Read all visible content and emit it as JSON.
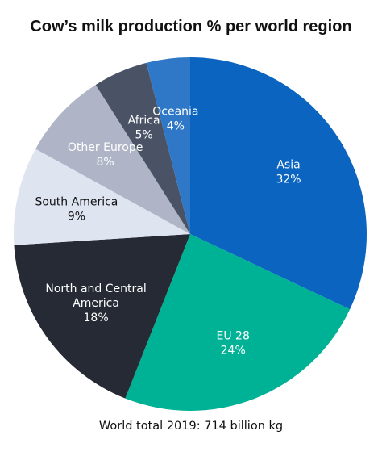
{
  "chart_data": {
    "type": "pie",
    "title": "Cow’s milk production % per world region",
    "start_angle_deg": 0,
    "direction": "clockwise",
    "slices": [
      {
        "label": [
          "Asia"
        ],
        "percent_text": "32%",
        "value": 32,
        "color": "#0a64c0",
        "label_color": "#ffffff"
      },
      {
        "label": [
          "EU 28"
        ],
        "percent_text": "24%",
        "value": 24,
        "color": "#00b295",
        "label_color": "#ffffff"
      },
      {
        "label": [
          "North and Central",
          "America"
        ],
        "percent_text": "18%",
        "value": 18,
        "color": "#252a34",
        "label_color": "#ffffff"
      },
      {
        "label": [
          "South America"
        ],
        "percent_text": "9%",
        "value": 9,
        "color": "#dfe4f1",
        "label_color": "#111111"
      },
      {
        "label": [
          "Other Europe"
        ],
        "percent_text": "8%",
        "value": 8,
        "color": "#afb5c6",
        "label_color": "#ffffff"
      },
      {
        "label": [
          "Africa"
        ],
        "percent_text": "5%",
        "value": 5,
        "color": "#4a5366",
        "label_color": "#ffffff"
      },
      {
        "label": [
          "Oceania"
        ],
        "percent_text": "4%",
        "value": 4,
        "color": "#2f78c8",
        "label_color": "#ffffff"
      }
    ],
    "footnote": "World total 2019: 714 billion kg"
  }
}
